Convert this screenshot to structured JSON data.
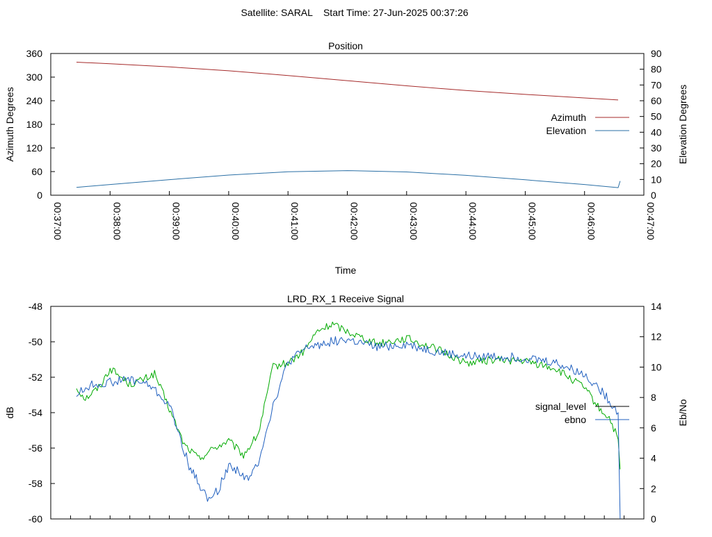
{
  "header": {
    "title": "Satellite: SARAL    Start Time: 27-Jun-2025 00:37:26"
  },
  "colors": {
    "azimuth": "#a52a2a",
    "elevation": "#2a6fa5",
    "signal_level": "#00aa00",
    "ebno": "#1f5fbf"
  },
  "chart_data": [
    {
      "type": "line",
      "title": "Position",
      "xlabel": "Time",
      "ylabel": "Azimuth Degrees",
      "y2label": "Elevation Degrees",
      "xlim": [
        "00:37:00",
        "00:47:00"
      ],
      "x_ticks": [
        "00:37:00",
        "00:38:00",
        "00:39:00",
        "00:40:00",
        "00:41:00",
        "00:42:00",
        "00:43:00",
        "00:44:00",
        "00:45:00",
        "00:46:00",
        "00:47:00"
      ],
      "ylim": [
        0,
        360
      ],
      "y_ticks": [
        0,
        60,
        120,
        180,
        240,
        300,
        360
      ],
      "y2lim": [
        0,
        90
      ],
      "y2_ticks": [
        0,
        10,
        20,
        30,
        40,
        50,
        60,
        70,
        80,
        90
      ],
      "legend_position": "right",
      "series": [
        {
          "name": "Azimuth",
          "axis": "y",
          "color_key": "azimuth",
          "x": [
            "00:37:26",
            "00:38:00",
            "00:39:00",
            "00:40:00",
            "00:41:00",
            "00:42:00",
            "00:43:00",
            "00:44:00",
            "00:45:00",
            "00:46:00",
            "00:46:34"
          ],
          "values": [
            338,
            334,
            326,
            316,
            304,
            291,
            278,
            266,
            256,
            247,
            242
          ]
        },
        {
          "name": "Elevation",
          "axis": "y2",
          "color_key": "elevation",
          "x": [
            "00:37:26",
            "00:38:00",
            "00:39:00",
            "00:40:00",
            "00:41:00",
            "00:42:00",
            "00:43:00",
            "00:44:00",
            "00:45:00",
            "00:46:00",
            "00:46:34",
            "00:46:36"
          ],
          "values": [
            5,
            6.8,
            9.9,
            12.8,
            14.9,
            15.6,
            14.8,
            12.6,
            9.8,
            6.8,
            4.8,
            9.0
          ]
        }
      ]
    },
    {
      "type": "line",
      "title": "LRD_RX_1 Receive Signal",
      "xlabel": "",
      "ylabel": "dB",
      "y2label": "Eb/No",
      "xlim": [
        "00:37:00",
        "00:47:00"
      ],
      "ylim": [
        -60,
        -48
      ],
      "y_ticks": [
        -60,
        -58,
        -56,
        -54,
        -52,
        -50,
        -48
      ],
      "y2lim": [
        0,
        14
      ],
      "y2_ticks": [
        0,
        2,
        4,
        6,
        8,
        10,
        12,
        14
      ],
      "legend_position": "right",
      "series": [
        {
          "name": "signal_level",
          "axis": "y",
          "color_key": "signal_level",
          "x": [
            "00:37:26",
            "00:37:35",
            "00:37:50",
            "00:38:00",
            "00:38:20",
            "00:38:35",
            "00:38:45",
            "00:39:00",
            "00:39:15",
            "00:39:30",
            "00:39:45",
            "00:40:00",
            "00:40:15",
            "00:40:30",
            "00:40:45",
            "00:41:00",
            "00:41:15",
            "00:41:30",
            "00:41:45",
            "00:42:00",
            "00:42:30",
            "00:43:00",
            "00:43:30",
            "00:44:00",
            "00:44:30",
            "00:45:00",
            "00:45:30",
            "00:46:00",
            "00:46:15",
            "00:46:25",
            "00:46:34",
            "00:46:36"
          ],
          "values": [
            -52.6,
            -53.2,
            -52.5,
            -51.5,
            -52.4,
            -52.1,
            -51.8,
            -53.8,
            -55.8,
            -56.6,
            -56.0,
            -55.6,
            -56.4,
            -55.2,
            -51.4,
            -51.2,
            -50.6,
            -49.4,
            -49.0,
            -49.4,
            -50.1,
            -49.8,
            -50.4,
            -51.2,
            -51.0,
            -51.1,
            -51.5,
            -52.6,
            -53.8,
            -54.3,
            -55.5,
            -57.2
          ]
        },
        {
          "name": "ebno",
          "axis": "y2",
          "color_key": "ebno",
          "x": [
            "00:37:26",
            "00:37:40",
            "00:38:00",
            "00:38:20",
            "00:38:40",
            "00:39:00",
            "00:39:10",
            "00:39:20",
            "00:39:30",
            "00:39:40",
            "00:39:50",
            "00:40:00",
            "00:40:10",
            "00:40:20",
            "00:40:30",
            "00:40:45",
            "00:41:00",
            "00:41:20",
            "00:41:45",
            "00:42:00",
            "00:42:30",
            "00:43:00",
            "00:43:30",
            "00:44:00",
            "00:44:30",
            "00:45:00",
            "00:45:30",
            "00:46:00",
            "00:46:15",
            "00:46:25",
            "00:46:34",
            "00:46:36"
          ],
          "values": [
            8.2,
            8.8,
            9.0,
            9.2,
            8.8,
            7.5,
            5.5,
            3.5,
            2.3,
            1.2,
            2.0,
            3.5,
            3.2,
            2.5,
            3.8,
            7.5,
            10.3,
            11.3,
            11.7,
            11.8,
            11.3,
            11.5,
            11.0,
            10.7,
            10.7,
            10.6,
            10.3,
            9.5,
            8.6,
            7.8,
            7.0,
            0.0
          ]
        }
      ]
    }
  ]
}
